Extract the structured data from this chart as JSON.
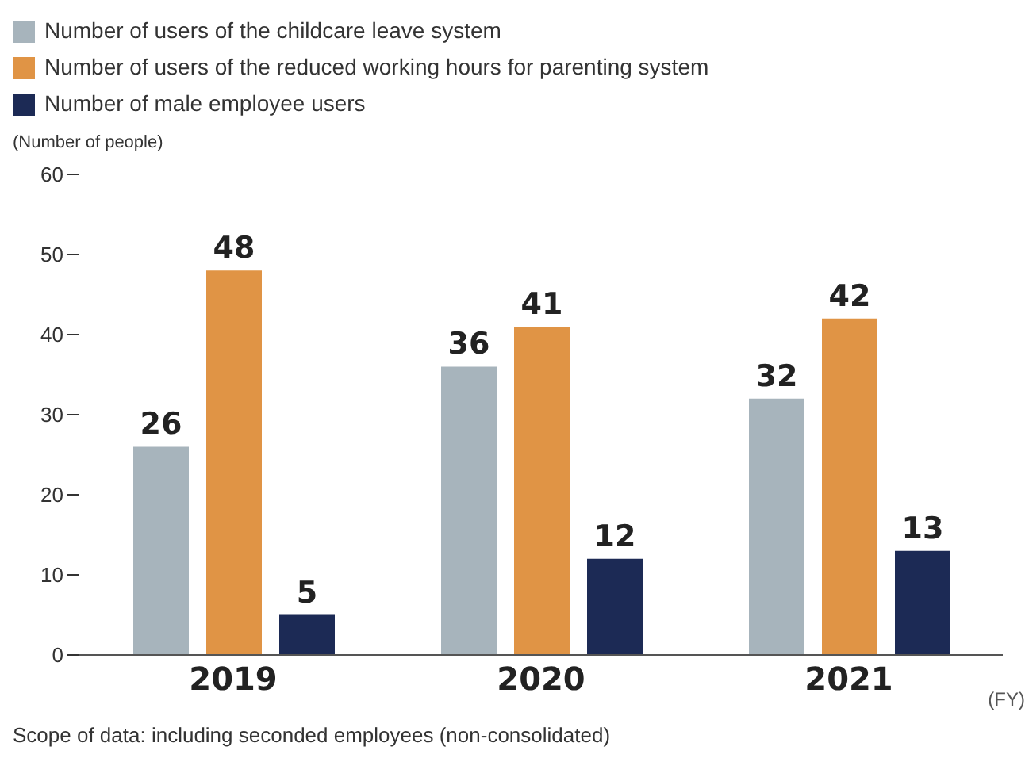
{
  "chart_data": {
    "type": "bar",
    "categories": [
      "2019",
      "2020",
      "2021"
    ],
    "ylabel": "(Number of people)",
    "xlabel": "(FY)",
    "series": [
      {
        "name": "Number of users of the childcare leave system",
        "color": "#a7b4bc",
        "values": [
          26,
          36,
          32
        ]
      },
      {
        "name": "Number of users of the reduced working hours for parenting system",
        "color": "#e09445",
        "values": [
          48,
          41,
          42
        ]
      },
      {
        "name": "Number of male employee users",
        "color": "#1c2a55",
        "values": [
          5,
          12,
          13
        ]
      }
    ],
    "ylim": [
      0,
      60
    ],
    "yticks": [
      0,
      10,
      20,
      30,
      40,
      50,
      60
    ],
    "grid": false,
    "legend": "top left",
    "data_labels": true,
    "annotations": [
      "Scope of data: including seconded employees (non-consolidated)"
    ]
  }
}
